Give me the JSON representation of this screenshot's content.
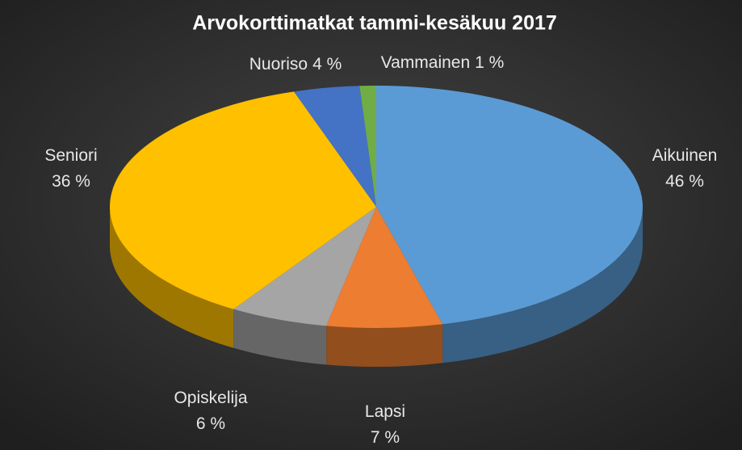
{
  "chart_data": {
    "type": "pie",
    "title": "Arvokorttimatkat tammi-kesäkuu 2017",
    "categories": [
      "Aikuinen",
      "Lapsi",
      "Opiskelija",
      "Seniori",
      "Nuoriso",
      "Vammainen"
    ],
    "values": [
      46,
      7,
      6,
      36,
      4,
      1
    ],
    "value_labels": [
      "46 %",
      "7 %",
      "6 %",
      "36 %",
      "4 %",
      "1 %"
    ],
    "colors": [
      "#5b9bd5",
      "#ed7d31",
      "#a5a5a5",
      "#ffc000",
      "#4472c4",
      "#70ad47"
    ]
  }
}
